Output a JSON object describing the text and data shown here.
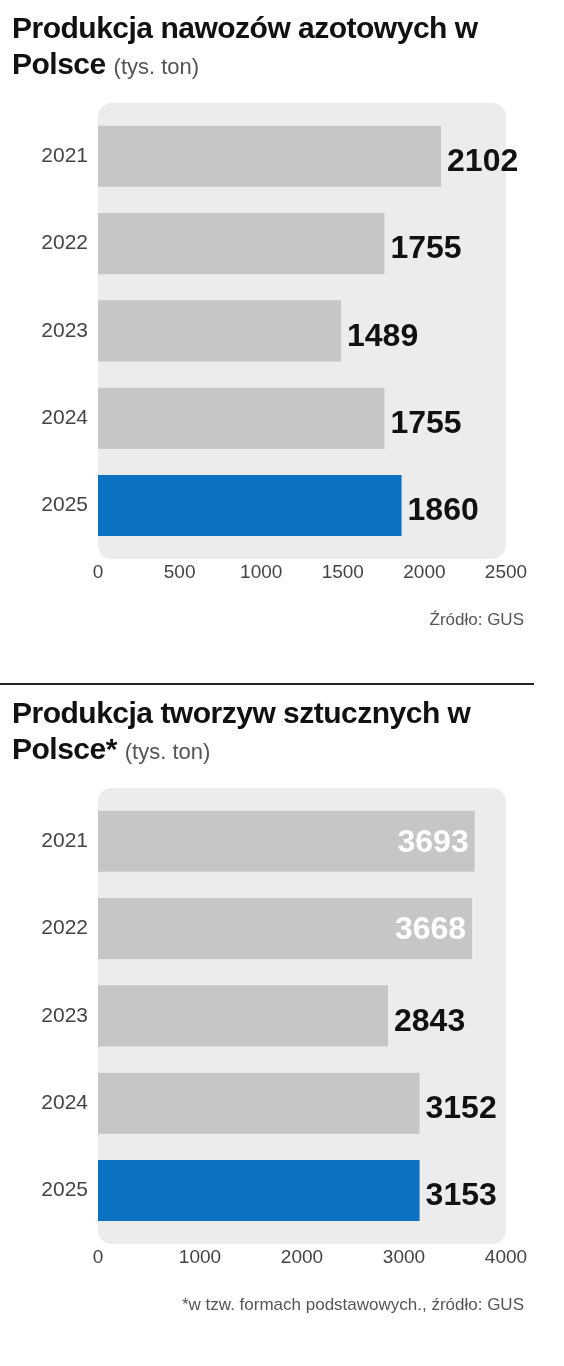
{
  "chart_data": [
    {
      "type": "bar",
      "orientation": "horizontal",
      "title": "Produkcja nawozów azotowych w Polsce",
      "subtitle": "(tys. ton)",
      "categories": [
        "2021",
        "2022",
        "2023",
        "2024",
        "2025"
      ],
      "values": [
        2102,
        1755,
        1489,
        1755,
        1860
      ],
      "colors": [
        "#c6c6c6",
        "#c6c6c6",
        "#c6c6c6",
        "#c6c6c6",
        "#0a72c1"
      ],
      "xlim": [
        0,
        2500
      ],
      "xticks": [
        0,
        500,
        1000,
        1500,
        2000,
        2500
      ],
      "grid": false,
      "legend": false,
      "data_labels": true,
      "annotations": [
        "Źródło: GUS"
      ]
    },
    {
      "type": "bar",
      "orientation": "horizontal",
      "title": "Produkcja tworzyw sztucznych w Polsce*",
      "subtitle": "(tys. ton)",
      "categories": [
        "2021",
        "2022",
        "2023",
        "2024",
        "2025"
      ],
      "values": [
        3693,
        3668,
        2843,
        3152,
        3153
      ],
      "colors": [
        "#c6c6c6",
        "#c6c6c6",
        "#c6c6c6",
        "#c6c6c6",
        "#0a72c1"
      ],
      "xlim": [
        0,
        4000
      ],
      "xticks": [
        0,
        1000,
        2000,
        3000,
        4000
      ],
      "grid": false,
      "legend": false,
      "data_labels": true,
      "annotations": [
        "*w tzw. formach podstawowych., źródło: GUS"
      ]
    }
  ]
}
